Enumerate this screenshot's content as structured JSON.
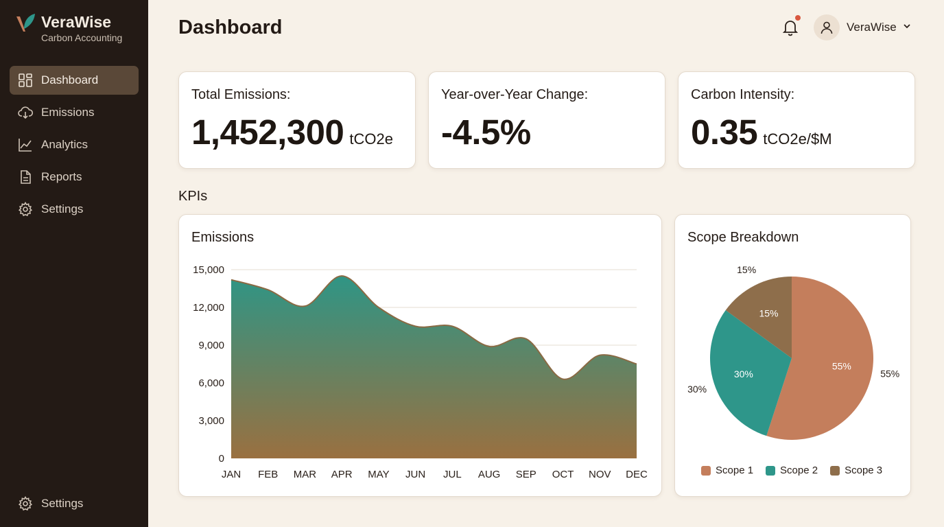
{
  "brand": {
    "name": "VeraWise",
    "subtitle": "Carbon Accounting"
  },
  "sidebar": {
    "items": [
      {
        "label": "Dashboard",
        "icon": "grid-icon",
        "active": true
      },
      {
        "label": "Emissions",
        "icon": "cloud-icon"
      },
      {
        "label": "Analytics",
        "icon": "chart-line-icon"
      },
      {
        "label": "Reports",
        "icon": "document-icon"
      },
      {
        "label": "Settings",
        "icon": "gear-icon"
      }
    ],
    "bottom": {
      "label": "Settings",
      "icon": "gear-icon"
    }
  },
  "header": {
    "title": "Dashboard",
    "user_name": "VeraWise"
  },
  "kpis": [
    {
      "label": "Total Emissions:",
      "value": "1,452,300",
      "unit": "tCO2e"
    },
    {
      "label": "Year-over-Year Change:",
      "value": "-4.5%",
      "unit": ""
    },
    {
      "label": "Carbon Intensity:",
      "value": "0.35",
      "unit": "tCO2e/$M"
    }
  ],
  "section_label": "KPIs",
  "colors": {
    "sidebar_bg": "#231a15",
    "accent_teal": "#2f9585",
    "accent_brown": "#9a7040",
    "scope1": "#c47e5c",
    "scope2": "#2e968a",
    "scope3": "#8e6e4b"
  },
  "chart_data": [
    {
      "type": "area",
      "title": "Emissions",
      "xlabel": "",
      "ylabel": "",
      "categories": [
        "JAN",
        "FEB",
        "MAR",
        "APR",
        "MAY",
        "JUN",
        "JUL",
        "AUG",
        "SEP",
        "OCT",
        "NOV",
        "DEC"
      ],
      "values": [
        14200,
        13400,
        12100,
        14500,
        12000,
        10500,
        10500,
        8900,
        9500,
        6300,
        8200,
        7500
      ],
      "ylim": [
        0,
        15000
      ],
      "yticks": [
        "0",
        "3,000",
        "6,000",
        "9,000",
        "12,000",
        "15,000"
      ],
      "ytick_values": [
        0,
        3000,
        6000,
        9000,
        12000,
        15000
      ],
      "grid": true
    },
    {
      "type": "pie",
      "title": "Scope Breakdown",
      "categories": [
        "Scope 1",
        "Scope 2",
        "Scope 3"
      ],
      "values": [
        55,
        30,
        15
      ],
      "labels": [
        "55%",
        "30%",
        "15%"
      ],
      "legend": "bottom"
    }
  ]
}
